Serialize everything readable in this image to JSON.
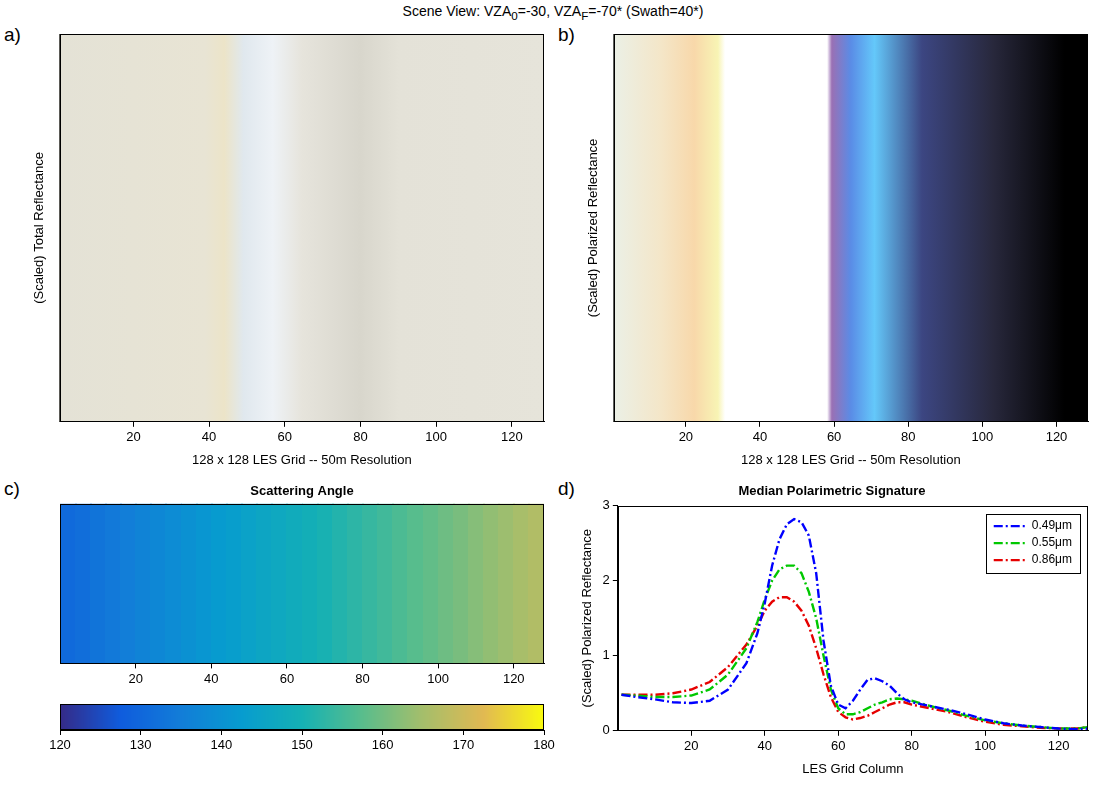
{
  "figure": {
    "title": [
      "Scene View: VZA",
      {
        "sub": "0"
      },
      "=-30,   VZA",
      {
        "sub": "F"
      },
      "=-70* (Swath=40*)"
    ]
  },
  "chart_data": [
    {
      "label": "a)",
      "type": "image",
      "y_label": "(Scaled) Total Reflectance",
      "x_label": "128 x 128 LES Grid -- 50m Resolution",
      "xlim": [
        0.5,
        128.5
      ],
      "xticks": [
        20,
        40,
        60,
        80,
        100,
        120
      ],
      "tick_labels": "x",
      "grid": false
    },
    {
      "label": "b)",
      "type": "image",
      "y_label": "(Scaled) Polarized Reflectance",
      "x_label": "128 x 128 LES Grid -- 50m Resolution",
      "xlim": [
        0.5,
        128.5
      ],
      "xticks": [
        20,
        40,
        60,
        80,
        100,
        120
      ],
      "tick_labels": "x",
      "grid": false
    },
    {
      "label": "c)",
      "type": "heatmap",
      "title": "Scattering Angle",
      "x": [
        2,
        6,
        10,
        14,
        18,
        22,
        26,
        30,
        34,
        38,
        42,
        46,
        50,
        54,
        58,
        62,
        66,
        70,
        74,
        78,
        82,
        86,
        90,
        94,
        98,
        102,
        106,
        110,
        114,
        118,
        122,
        126
      ],
      "scattering_angle": [
        130.6,
        131.7,
        132.9,
        134.1,
        135.2,
        136.4,
        137.5,
        138.7,
        139.9,
        141.0,
        142.2,
        143.3,
        144.5,
        145.7,
        146.8,
        148.0,
        149.1,
        150.3,
        151.5,
        152.6,
        153.8,
        154.9,
        156.1,
        157.3,
        158.4,
        159.6,
        160.7,
        161.9,
        163.1,
        164.2,
        165.4,
        166.5
      ],
      "xlim": [
        0,
        128
      ],
      "xticks": [
        20,
        40,
        60,
        80,
        100,
        120
      ],
      "tick_labels": "x",
      "grid": false,
      "colorbar": {
        "range": [
          120,
          180
        ],
        "ticks": [
          120,
          130,
          140,
          150,
          160,
          170,
          180
        ]
      }
    },
    {
      "label": "d)",
      "type": "line",
      "title": "Median Polarimetric Signature",
      "x_label": "LES Grid Column",
      "y_label": "(Scaled) Polarized Reflectance",
      "x": [
        1,
        5,
        10,
        15,
        20,
        25,
        30,
        35,
        38,
        40,
        42,
        44,
        46,
        48,
        50,
        52,
        54,
        56,
        58,
        60,
        62,
        64,
        66,
        68,
        70,
        72,
        74,
        76,
        78,
        80,
        85,
        90,
        95,
        100,
        105,
        110,
        115,
        120,
        125,
        128
      ],
      "series": [
        {
          "name": "0.49μm",
          "color": "#0000ff",
          "line_style": "dashdot",
          "values": [
            0.48,
            0.45,
            0.42,
            0.38,
            0.37,
            0.4,
            0.55,
            0.9,
            1.3,
            1.7,
            2.2,
            2.55,
            2.75,
            2.82,
            2.78,
            2.6,
            2.1,
            1.2,
            0.6,
            0.35,
            0.3,
            0.4,
            0.55,
            0.68,
            0.7,
            0.66,
            0.6,
            0.5,
            0.42,
            0.38,
            0.33,
            0.28,
            0.22,
            0.15,
            0.1,
            0.07,
            0.05,
            0.03,
            0.02,
            0.03
          ]
        },
        {
          "name": "0.55μm",
          "color": "#00c800",
          "line_style": "dashdot",
          "values": [
            0.48,
            0.47,
            0.45,
            0.45,
            0.47,
            0.55,
            0.75,
            1.1,
            1.45,
            1.75,
            2.0,
            2.15,
            2.2,
            2.2,
            2.1,
            1.85,
            1.5,
            1.0,
            0.55,
            0.3,
            0.22,
            0.22,
            0.25,
            0.3,
            0.35,
            0.38,
            0.42,
            0.43,
            0.42,
            0.4,
            0.33,
            0.27,
            0.2,
            0.14,
            0.1,
            0.07,
            0.05,
            0.03,
            0.03,
            0.05
          ]
        },
        {
          "name": "0.86μm",
          "color": "#e60000",
          "line_style": "dashdot",
          "values": [
            0.48,
            0.48,
            0.48,
            0.5,
            0.55,
            0.65,
            0.85,
            1.15,
            1.4,
            1.6,
            1.72,
            1.78,
            1.78,
            1.72,
            1.6,
            1.4,
            1.1,
            0.75,
            0.45,
            0.25,
            0.18,
            0.15,
            0.17,
            0.2,
            0.25,
            0.3,
            0.35,
            0.38,
            0.38,
            0.35,
            0.3,
            0.25,
            0.18,
            0.12,
            0.08,
            0.06,
            0.04,
            0.03,
            0.03,
            0.05
          ]
        }
      ],
      "xlim": [
        0,
        128
      ],
      "ylim": [
        0,
        3
      ],
      "xticks": [
        20,
        40,
        60,
        80,
        100,
        120
      ],
      "yticks": [
        0,
        1,
        2,
        3
      ],
      "legend": "upper right",
      "grid": false
    }
  ]
}
